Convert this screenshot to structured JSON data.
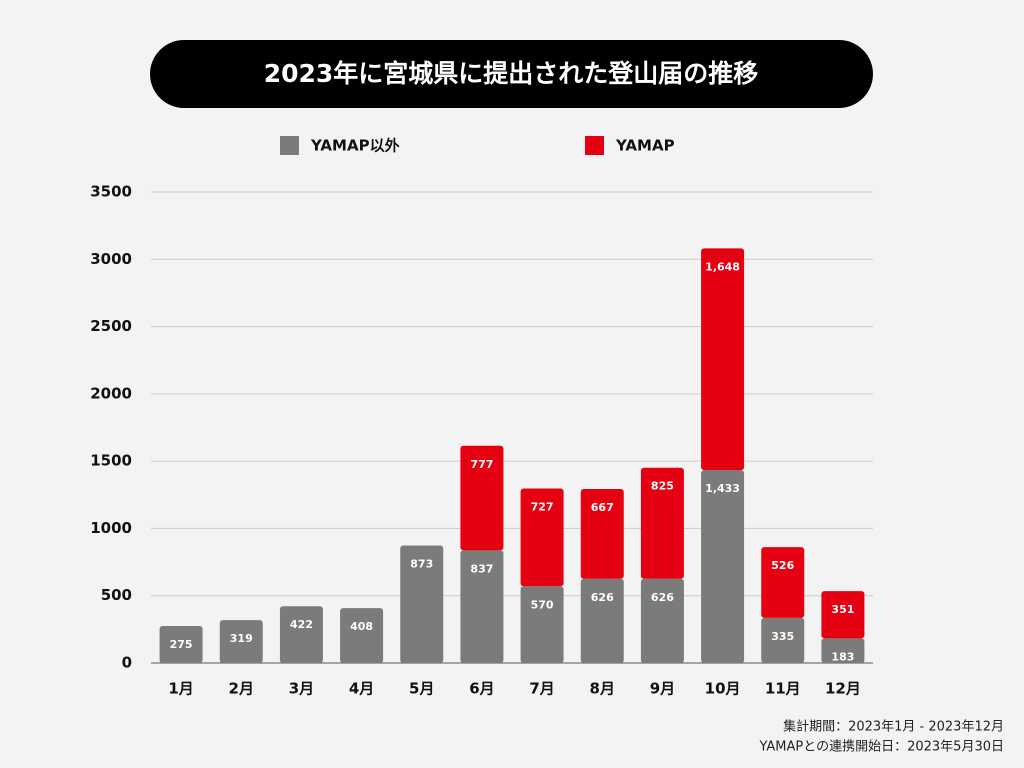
{
  "chart_data": {
    "type": "stacked_bar",
    "title": "2023年に宮城県に提出された登山届の推移",
    "categories": [
      "1月",
      "2月",
      "3月",
      "4月",
      "5月",
      "6月",
      "7月",
      "8月",
      "9月",
      "10月",
      "11月",
      "12月"
    ],
    "series": [
      {
        "name": "YAMAP以外",
        "color": "#7b7b7b",
        "values": [
          275,
          319,
          422,
          408,
          873,
          837,
          570,
          626,
          626,
          1433,
          335,
          183
        ],
        "value_labels": [
          "275",
          "319",
          "422",
          "408",
          "873",
          "837",
          "570",
          "626",
          "626",
          "1,433",
          "335",
          "183"
        ]
      },
      {
        "name": "YAMAP",
        "color": "#e50012",
        "values": [
          null,
          null,
          null,
          null,
          null,
          777,
          727,
          667,
          825,
          1648,
          526,
          351
        ],
        "value_labels": [
          null,
          null,
          null,
          null,
          null,
          "777",
          "727",
          "667",
          "825",
          "1,648",
          "526",
          "351"
        ]
      }
    ],
    "ylim": [
      0,
      3500
    ],
    "yticks": [
      0,
      500,
      1000,
      1500,
      2000,
      2500,
      3000,
      3500
    ],
    "grid": true,
    "legend": "top",
    "notes": [
      "集計期間：2023年1月 - 2023年12月",
      "YAMAPとの連携開始日：2023年5月30日"
    ]
  }
}
